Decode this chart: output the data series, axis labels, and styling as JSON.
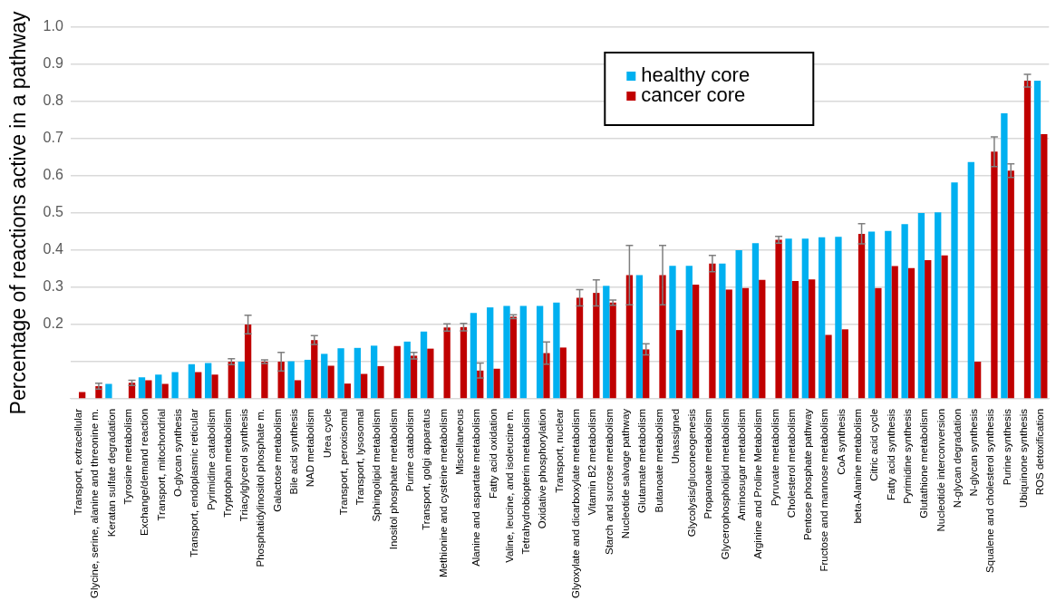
{
  "chart_data": {
    "type": "bar",
    "ylabel": "Percentage of reactions active in a pathway",
    "categories": [
      "Transport, extracellular",
      "Glycine, serine, alanine and threonine m.",
      "Keratan sulfate degradation",
      "Tyrosine metabolism",
      "Exchange/demand reaction",
      "Transport, mitochondrial",
      "O-glycan synthesis",
      "Transport, endoplasmic reticular",
      "Pyrimidine catabolism",
      "Tryptophan metabolism",
      "Triacylglycerol synthesis",
      "Phosphatidylinositol phosphate m.",
      "Galactose metabolism",
      "Bile acid synthesis",
      "NAD metabolism",
      "Urea cycle",
      "Transport, peroxisomal",
      "Transport, lysosomal",
      "Sphingolipid metabolism",
      "Inositol phosphate metabolism",
      "Purine catabolism",
      "Transport, golgi apparatus",
      "Methionine and cysteine metabolism",
      "Miscellaneous",
      "Alanine and aspartate metabolism",
      "Fatty acid oxidation",
      "Valine, leucine, and isoleucine m.",
      "Tetrahydrobiopterin metabolism",
      "Oxidative phosphorylation",
      "Transport, nuclear",
      "Glyoxylate and dicarboxylate metabolism",
      "Vitamin B2 metabolism",
      "Starch and sucrose metabolism",
      "Nucleotide salvage pathway",
      "Glutamate metabolism",
      "Butanoate metabolism",
      "Unassigned",
      "Glycolysis/gluconeogenesis",
      "Propanoate metabolism",
      "Glycerophospholipid metabolism",
      "Aminosugar metabolism",
      "Arginine and Proline Metabolism",
      "Pyruvate metabolism",
      "Cholesterol metabolism",
      "Pentose phosphate pathway",
      "Fructose and mannose metabolism",
      "CoA synthesis",
      "beta-Alanine metabolism",
      "Citric acid cycle",
      "Fatty acid synthesis",
      "Pyrimidine synthesis",
      "Glutathione metabolism",
      "Nucleotide interconversion",
      "N-glycan degradation",
      "N-glycan synthesis",
      "Squalene and cholesterol synthesis",
      "Purine synthesis",
      "Ubiquinone synthesis",
      "ROS detoxification"
    ],
    "series": [
      {
        "name": "healthy core",
        "color": "#00b0f0",
        "values": [
          0,
          0,
          0.04,
          0,
          0.058,
          0.065,
          0.072,
          0.093,
          0.096,
          0,
          0.1,
          0,
          0,
          0.101,
          0.105,
          0.121,
          0.136,
          0.137,
          0.143,
          0,
          0.154,
          0.181,
          0,
          0,
          0.231,
          0.246,
          0.25,
          0.25,
          0.25,
          0.259,
          0,
          0,
          0.304,
          0,
          0.333,
          0,
          0.358,
          0.358,
          0,
          0.364,
          0.4,
          0.419,
          0,
          0.431,
          0.431,
          0.435,
          0.436,
          0,
          0.45,
          0.452,
          0.47,
          0.5,
          0.502,
          0.582,
          0.637,
          0,
          0.768,
          0,
          0.856
        ]
      },
      {
        "name": "cancer core",
        "color": "#c00000",
        "values": [
          0.018,
          0.034,
          0,
          0.043,
          0.05,
          0.04,
          0,
          0.072,
          0.065,
          0.1,
          0.2,
          0.1,
          0.1,
          0.05,
          0.158,
          0.089,
          0.041,
          0.067,
          0.088,
          0.142,
          0.116,
          0.135,
          0.192,
          0.193,
          0.076,
          0.081,
          0.221,
          0,
          0.123,
          0.138,
          0.272,
          0.285,
          0.259,
          0.333,
          0.133,
          0.333,
          0.185,
          0.307,
          0.364,
          0.294,
          0.298,
          0.32,
          0.428,
          0.317,
          0.321,
          0.172,
          0.187,
          0.444,
          0.298,
          0.357,
          0.352,
          0.373,
          0.386,
          0,
          0.1,
          0.665,
          0.614,
          0.856,
          0.712
        ],
        "errors": [
          null,
          0.008,
          null,
          0.007,
          null,
          null,
          null,
          null,
          null,
          0.008,
          0.025,
          0.005,
          0.025,
          null,
          0.012,
          null,
          null,
          null,
          null,
          null,
          0.009,
          null,
          0.01,
          0.01,
          0.02,
          null,
          0.005,
          null,
          0.03,
          null,
          0.022,
          0.035,
          0.007,
          0.08,
          0.015,
          0.08,
          null,
          null,
          0.022,
          null,
          null,
          null,
          0.009,
          null,
          null,
          null,
          null,
          0.027,
          null,
          null,
          null,
          null,
          null,
          null,
          null,
          0.04,
          0.018,
          0.017,
          null
        ]
      }
    ],
    "ylim": [
      0,
      1
    ],
    "yticks": [
      {
        "value": 0,
        "label": null
      },
      {
        "value": 0.1,
        "label": null
      },
      0.2,
      0.3,
      0.4,
      0.5,
      0.6,
      0.7,
      0.8,
      0.9,
      {
        "value": 1,
        "label": "1.0"
      }
    ],
    "grid": "y",
    "legend": "top right"
  }
}
